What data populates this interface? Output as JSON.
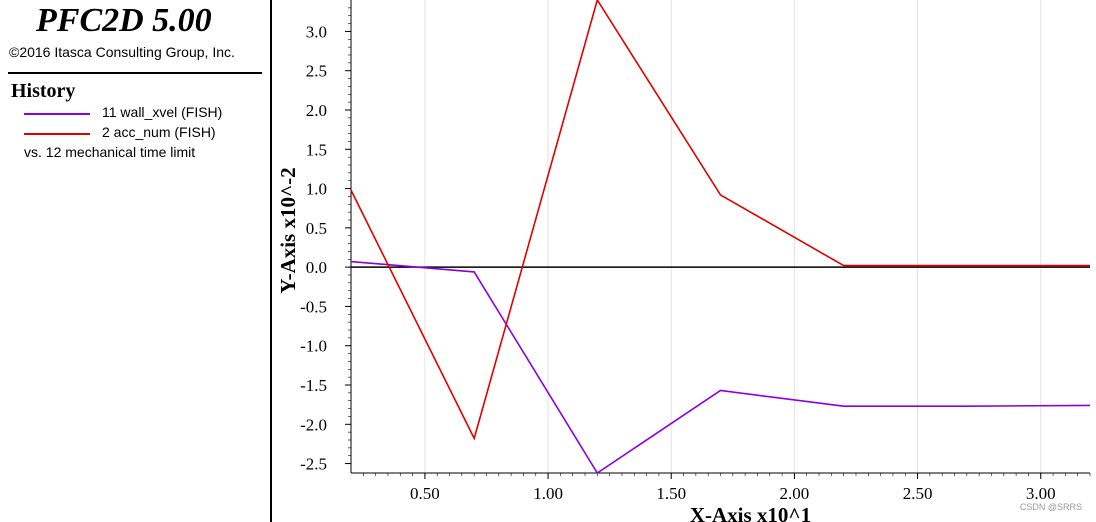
{
  "app": {
    "title": "PFC2D 5.00",
    "copyright": "©2016 Itasca Consulting Group, Inc."
  },
  "legend": {
    "heading": "History",
    "entries": [
      {
        "label": "11 wall_xvel (FISH)",
        "color": "#8b00e0"
      },
      {
        "label": "2 acc_num (FISH)",
        "color": "#e00000"
      }
    ],
    "vs_label": "vs. 12 mechanical time limit"
  },
  "watermark": "CSDN @SRRS",
  "chart_data": {
    "type": "line",
    "xlabel": "X-Axis x10^1",
    "ylabel": "Y-Axis x10^-2",
    "xlim": [
      0.2,
      3.2
    ],
    "ylim": [
      -2.62,
      3.4
    ],
    "x_ticks": [
      0.5,
      1.0,
      1.5,
      2.0,
      2.5,
      3.0
    ],
    "x_tick_labels": [
      "0.50",
      "1.00",
      "1.50",
      "2.00",
      "2.50",
      "3.00"
    ],
    "y_ticks": [
      3.0,
      2.5,
      2.0,
      1.5,
      1.0,
      0.5,
      0.0,
      -0.5,
      -1.0,
      -1.5,
      -2.0,
      -2.5
    ],
    "y_tick_labels": [
      "3.0",
      "2.5",
      "2.0",
      "1.5",
      "1.0",
      "0.5",
      "0.0",
      "-0.5",
      "-1.0",
      "-1.5",
      "-2.0",
      "-2.5"
    ],
    "grid": "vertical",
    "zero_line": true,
    "series": [
      {
        "name": "11 wall_xvel (FISH)",
        "color": "#8b00e0",
        "points": [
          [
            0.2,
            0.07
          ],
          [
            0.7,
            -0.06
          ],
          [
            1.2,
            -2.62
          ],
          [
            1.7,
            -1.57
          ],
          [
            2.2,
            -1.77
          ],
          [
            2.7,
            -1.77
          ],
          [
            3.2,
            -1.76
          ]
        ]
      },
      {
        "name": "2 acc_num (FISH)",
        "color": "#e00000",
        "points": [
          [
            0.2,
            0.98
          ],
          [
            0.7,
            -2.18
          ],
          [
            1.2,
            3.4
          ],
          [
            1.7,
            0.92
          ],
          [
            2.2,
            0.02
          ],
          [
            2.7,
            0.02
          ],
          [
            3.2,
            0.02
          ]
        ]
      }
    ]
  }
}
